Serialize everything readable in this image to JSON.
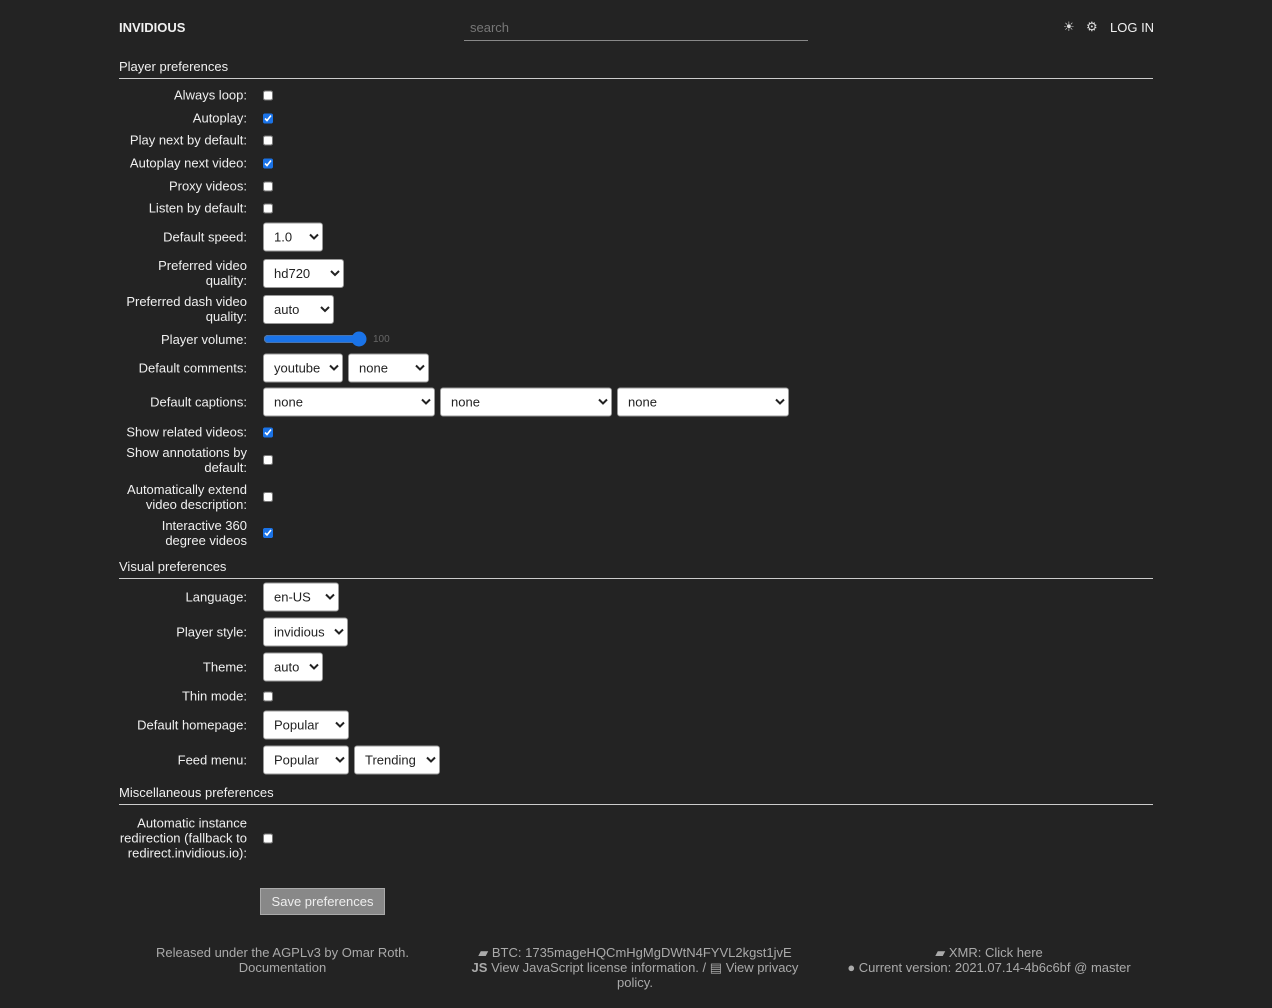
{
  "header": {
    "logo": "INVIDIOUS",
    "search_placeholder": "search",
    "theme_icon": "☀",
    "settings_icon": "⚙",
    "login": "LOG IN"
  },
  "player": {
    "title": "Player preferences",
    "always_loop": {
      "label": "Always loop:",
      "checked": false
    },
    "autoplay": {
      "label": "Autoplay:",
      "checked": true
    },
    "play_next": {
      "label": "Play next by default:",
      "checked": false
    },
    "autoplay_next": {
      "label": "Autoplay next video:",
      "checked": true
    },
    "proxy": {
      "label": "Proxy videos:",
      "checked": false
    },
    "listen": {
      "label": "Listen by default:",
      "checked": false
    },
    "speed": {
      "label": "Default speed:",
      "value": "1.0"
    },
    "quality": {
      "label": "Preferred video quality:",
      "value": "hd720"
    },
    "dash_quality": {
      "label": "Preferred dash video quality:",
      "value": "auto"
    },
    "volume": {
      "label": "Player volume:",
      "value": "100"
    },
    "comments": {
      "label": "Default comments:",
      "values": [
        "youtube",
        "none"
      ]
    },
    "captions": {
      "label": "Default captions:",
      "values": [
        "none",
        "none",
        "none"
      ]
    },
    "related": {
      "label": "Show related videos:",
      "checked": true
    },
    "annotations": {
      "label": "Show annotations by default:",
      "checked": false
    },
    "extend_desc": {
      "label": "Automatically extend video description:",
      "checked": false
    },
    "vr360": {
      "label": "Interactive 360 degree videos",
      "checked": true
    }
  },
  "visual": {
    "title": "Visual preferences",
    "language": {
      "label": "Language:",
      "value": "en-US"
    },
    "player_style": {
      "label": "Player style:",
      "value": "invidious"
    },
    "theme": {
      "label": "Theme:",
      "value": "auto"
    },
    "thin_mode": {
      "label": "Thin mode:",
      "checked": false
    },
    "homepage": {
      "label": "Default homepage:",
      "value": "Popular"
    },
    "feed_menu": {
      "label": "Feed menu:",
      "values": [
        "Popular",
        "Trending"
      ]
    }
  },
  "misc": {
    "title": "Miscellaneous preferences",
    "redirect": {
      "label": "Automatic instance redirection (fallback to redirect.invidious.io):",
      "checked": false
    }
  },
  "save_label": "Save preferences",
  "footer": {
    "released": "Released under the AGPLv3 by Omar Roth.",
    "documentation": "Documentation",
    "btc": "BTC: 1735mageHQCmHgMgDWtN4FYVL2kgst1jvE",
    "js_license": "View JavaScript license information.",
    "separator": "/",
    "privacy": "View privacy policy.",
    "xmr": "XMR: Click here",
    "version": "Current version: 2021.07.14-4b6c6bf @ master"
  }
}
